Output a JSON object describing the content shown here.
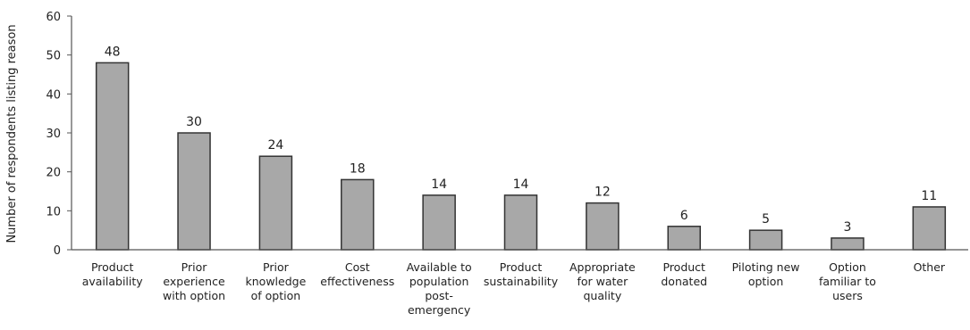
{
  "chart_data": {
    "type": "bar",
    "title": "",
    "xlabel": "",
    "ylabel": "Number of respondents listing reason",
    "ylim": [
      0,
      60
    ],
    "yticks": [
      0,
      10,
      20,
      30,
      40,
      50,
      60
    ],
    "grid": false,
    "legend": "none",
    "bar_color": "#a8a8a8",
    "categories": [
      [
        "Product",
        "availability"
      ],
      [
        "Prior",
        "experience",
        "with option"
      ],
      [
        "Prior",
        "knowledge",
        "of option"
      ],
      [
        "Cost",
        "effectiveness"
      ],
      [
        "Available to",
        "population",
        "post-",
        "emergency"
      ],
      [
        "Product",
        "sustainability"
      ],
      [
        "Appropriate",
        "for water",
        "quality"
      ],
      [
        "Product",
        "donated"
      ],
      [
        "Piloting new",
        "option"
      ],
      [
        "Option",
        "familiar to",
        "users"
      ],
      [
        "Other"
      ]
    ],
    "values": [
      48,
      30,
      24,
      18,
      14,
      14,
      12,
      6,
      5,
      3,
      11
    ]
  }
}
